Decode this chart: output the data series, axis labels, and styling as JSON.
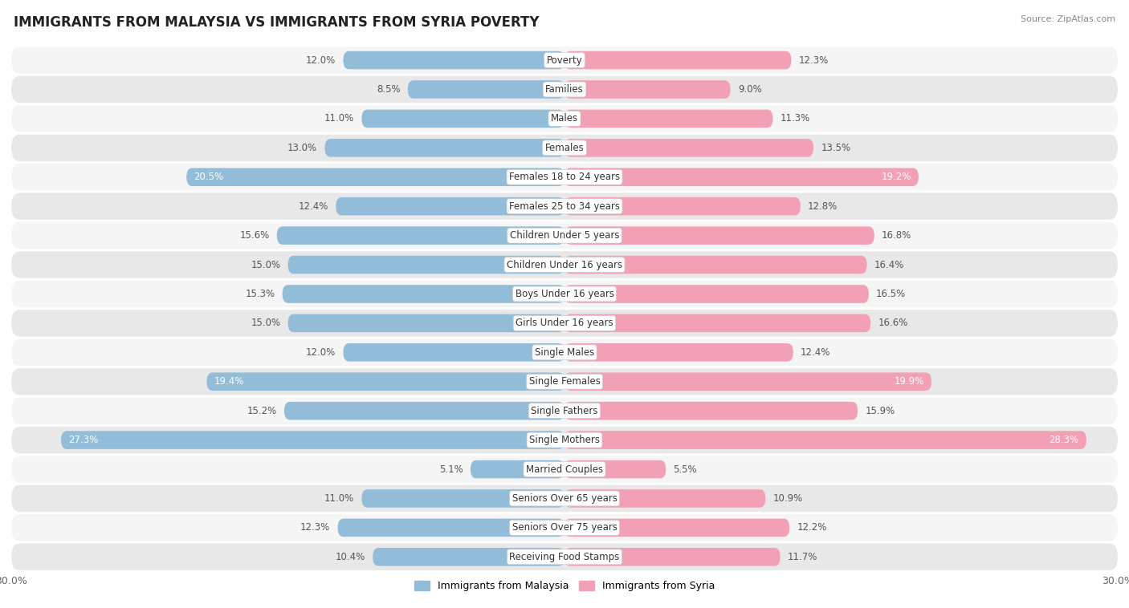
{
  "title": "IMMIGRANTS FROM MALAYSIA VS IMMIGRANTS FROM SYRIA POVERTY",
  "source": "Source: ZipAtlas.com",
  "categories": [
    "Poverty",
    "Families",
    "Males",
    "Females",
    "Females 18 to 24 years",
    "Females 25 to 34 years",
    "Children Under 5 years",
    "Children Under 16 years",
    "Boys Under 16 years",
    "Girls Under 16 years",
    "Single Males",
    "Single Females",
    "Single Fathers",
    "Single Mothers",
    "Married Couples",
    "Seniors Over 65 years",
    "Seniors Over 75 years",
    "Receiving Food Stamps"
  ],
  "malaysia_values": [
    12.0,
    8.5,
    11.0,
    13.0,
    20.5,
    12.4,
    15.6,
    15.0,
    15.3,
    15.0,
    12.0,
    19.4,
    15.2,
    27.3,
    5.1,
    11.0,
    12.3,
    10.4
  ],
  "syria_values": [
    12.3,
    9.0,
    11.3,
    13.5,
    19.2,
    12.8,
    16.8,
    16.4,
    16.5,
    16.6,
    12.4,
    19.9,
    15.9,
    28.3,
    5.5,
    10.9,
    12.2,
    11.7
  ],
  "malaysia_color": "#92bcd8",
  "syria_color": "#f2a0b5",
  "row_bg_light": "#f5f5f5",
  "row_bg_dark": "#e8e8e8",
  "max_value": 30.0,
  "title_fontsize": 12,
  "value_fontsize": 8.5,
  "category_fontsize": 8.5,
  "legend_malaysia": "Immigrants from Malaysia",
  "legend_syria": "Immigrants from Syria",
  "fig_bg": "#ffffff"
}
